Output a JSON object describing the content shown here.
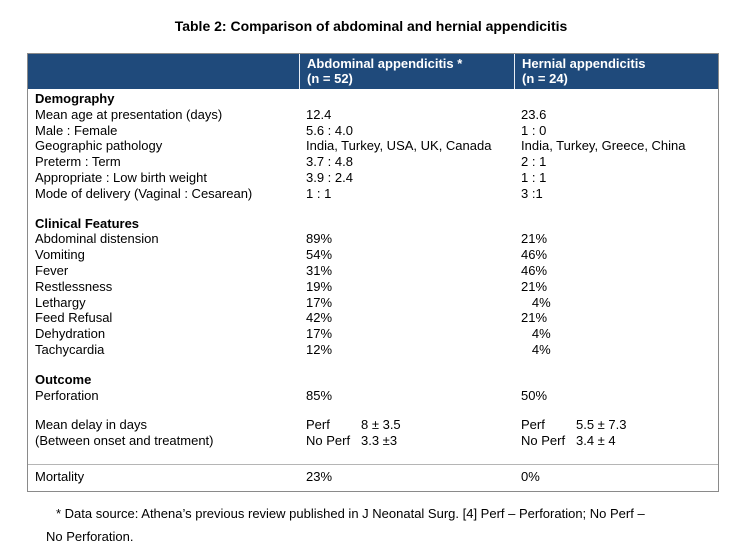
{
  "title": "Table 2: Comparison of abdominal and hernial appendicitis",
  "colors": {
    "header_bg": "#1F4A7B",
    "header_text": "#FFFFFF",
    "table_border": "#8A8A8A",
    "mortality_rule": "#B5B5B5"
  },
  "header": {
    "col1": "",
    "col2": {
      "line1": "Abdominal appendicitis *",
      "line2": "(n = 52)"
    },
    "col3": {
      "line1": "Hernial appendicitis",
      "line2": "(n = 24)"
    }
  },
  "rows": [
    {
      "type": "section",
      "label": "Demography"
    },
    {
      "type": "data",
      "label": "Mean age at presentation (days)",
      "abdominal": "12.4",
      "hernial": "23.6"
    },
    {
      "type": "data",
      "label": "Male : Female",
      "abdominal": "5.6 : 4.0",
      "hernial": "1 : 0"
    },
    {
      "type": "data",
      "label": "Geographic pathology",
      "abdominal": "India, Turkey, USA, UK, Canada",
      "hernial": "India, Turkey, Greece, China"
    },
    {
      "type": "data",
      "label": "Preterm : Term",
      "abdominal": "3.7 : 4.8",
      "hernial": "2 : 1"
    },
    {
      "type": "data",
      "label": "Appropriate : Low birth weight",
      "abdominal": "3.9 : 2.4",
      "hernial": "1 : 1"
    },
    {
      "type": "data",
      "label": "Mode of delivery (Vaginal : Cesarean)",
      "abdominal": "1 : 1",
      "hernial": "3 :1"
    },
    {
      "type": "spacer"
    },
    {
      "type": "section",
      "label": "Clinical Features"
    },
    {
      "type": "data",
      "label": "Abdominal distension",
      "abdominal": "89%",
      "hernial": "21%"
    },
    {
      "type": "data",
      "label": "Vomiting",
      "abdominal": "54%",
      "hernial": "46%"
    },
    {
      "type": "data",
      "label": "Fever",
      "abdominal": "31%",
      "hernial": "46%"
    },
    {
      "type": "data",
      "label": "Restlessness",
      "abdominal": "19%",
      "hernial": "21%"
    },
    {
      "type": "data",
      "label": "Lethargy",
      "abdominal": "17%",
      "hernial": "   4%"
    },
    {
      "type": "data",
      "label": "Feed Refusal",
      "abdominal": "42%",
      "hernial": "21%"
    },
    {
      "type": "data",
      "label": "Dehydration",
      "abdominal": "17%",
      "hernial": "   4%"
    },
    {
      "type": "data",
      "label": "Tachycardia",
      "abdominal": "12%",
      "hernial": "   4%"
    },
    {
      "type": "spacer"
    },
    {
      "type": "section",
      "label": "Outcome"
    },
    {
      "type": "data",
      "label": "Perforation",
      "abdominal": "85%",
      "hernial": "50%"
    },
    {
      "type": "spacer"
    },
    {
      "type": "delay",
      "label": "Mean delay in days",
      "abdominal_label": "Perf",
      "abdominal_value": "8 ± 3.5",
      "hernial_label": "Perf",
      "hernial_value": "5.5 ± 7.3"
    },
    {
      "type": "delay",
      "label": "(Between onset and treatment)",
      "abdominal_label": "No Perf",
      "abdominal_value": "3.3 ±3",
      "hernial_label": "No Perf",
      "hernial_value": "3.4 ± 4"
    },
    {
      "type": "spacer"
    },
    {
      "type": "data",
      "label": "Mortality",
      "abdominal": "23%",
      "hernial": "0%"
    }
  ],
  "footnote": {
    "line1": "* Data source: Athena’s previous review published in J Neonatal Surg. [4] Perf – Perforation; No Perf –",
    "line2": "No Perforation."
  }
}
